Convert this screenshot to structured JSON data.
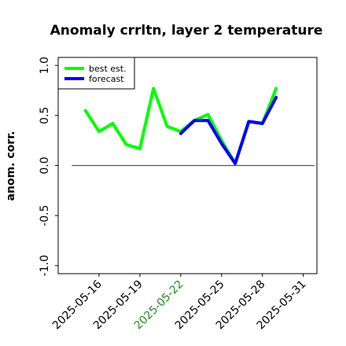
{
  "chart_data": {
    "type": "line",
    "title": "Anomaly crrltn, layer 2 temperature",
    "xlabel": "",
    "ylabel": "anom. corr.",
    "ylim": [
      -1.08,
      1.08
    ],
    "xlim": [
      "2025-05-13",
      "2025-06-01"
    ],
    "grid": false,
    "legend": "top-left",
    "y_ticks": [
      "-1.0",
      "-0.5",
      "0.0",
      "0.5",
      "1.0"
    ],
    "x_ticks": [
      "2025-05-16",
      "2025-05-19",
      "2025-05-22",
      "2025-05-25",
      "2025-05-28",
      "2025-05-31"
    ],
    "highlight_tick": "2025-05-22",
    "highlight_color": "#228b22",
    "zero_line": 0.0,
    "series": [
      {
        "name": "best est.",
        "color": "#00ff00",
        "x": [
          "2025-05-15",
          "2025-05-16",
          "2025-05-17",
          "2025-05-18",
          "2025-05-19",
          "2025-05-20",
          "2025-05-21",
          "2025-05-22",
          "2025-05-23",
          "2025-05-24",
          "2025-05-25",
          "2025-05-26",
          "2025-05-27",
          "2025-05-28",
          "2025-05-29"
        ],
        "values": [
          0.55,
          0.34,
          0.42,
          0.21,
          0.17,
          0.77,
          0.39,
          0.34,
          0.45,
          0.51,
          0.25,
          0.02,
          0.44,
          0.42,
          0.77
        ]
      },
      {
        "name": "forecast",
        "color": "#0000ff",
        "x": [
          "2025-05-22",
          "2025-05-23",
          "2025-05-24",
          "2025-05-25",
          "2025-05-26",
          "2025-05-27",
          "2025-05-28",
          "2025-05-29"
        ],
        "values": [
          0.32,
          0.45,
          0.45,
          0.22,
          0.02,
          0.44,
          0.42,
          0.68
        ]
      }
    ]
  }
}
